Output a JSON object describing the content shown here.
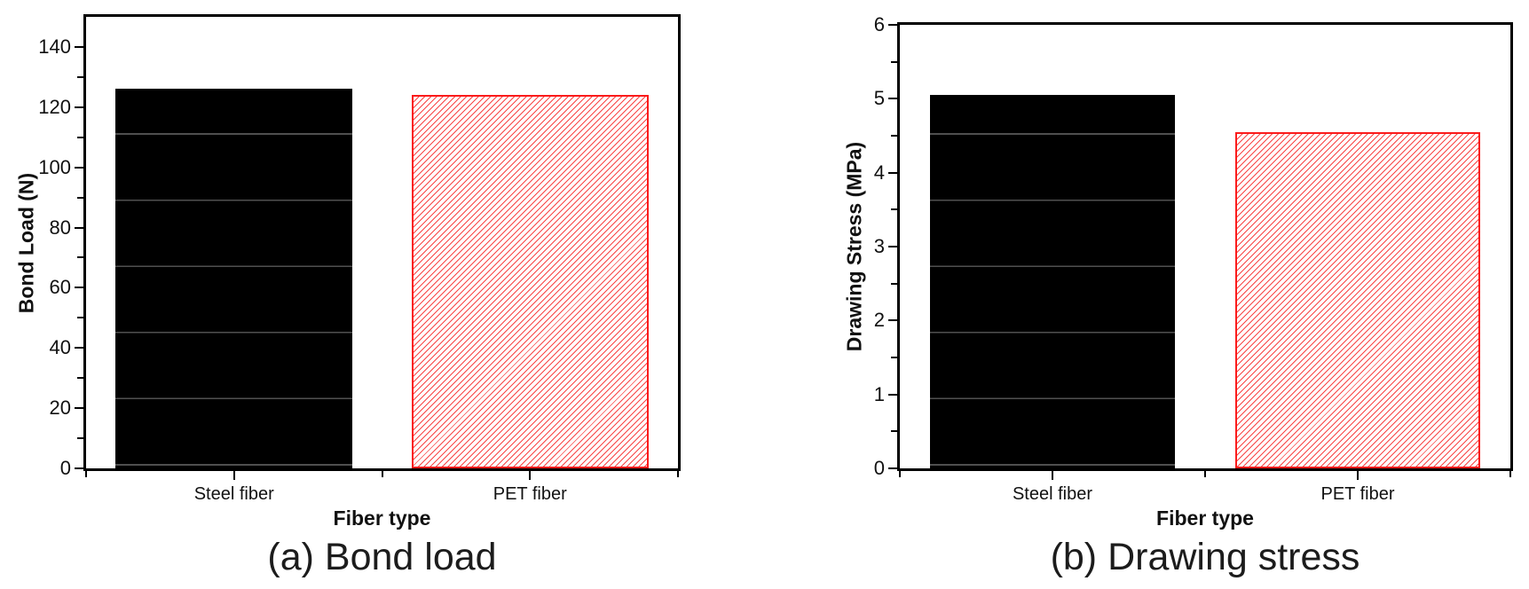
{
  "colors": {
    "axis": "#000000",
    "bar_fill": "#000000",
    "banding_line": "#4f4f4f",
    "hatch_line": "#f94545",
    "hatch_border": "#fb1b1b",
    "background": "#ffffff",
    "text": "#111111"
  },
  "chart_data": [
    {
      "type": "bar",
      "caption": "(a) Bond load",
      "xlabel": "Fiber type",
      "ylabel": "Bond Load (N)",
      "categories": [
        "Steel fiber",
        "PET fiber"
      ],
      "values": [
        126,
        124
      ],
      "ylim": [
        0,
        150
      ],
      "ytick_step": 20,
      "yminor_step": 10,
      "ytick_labels": [
        "0",
        "20",
        "40",
        "60",
        "80",
        "100",
        "120",
        "140"
      ],
      "bar_styles": [
        "solid-black",
        "hatched-red"
      ],
      "grid": false,
      "legend": "none"
    },
    {
      "type": "bar",
      "caption": "(b) Drawing stress",
      "xlabel": "Fiber type",
      "ylabel": "Drawing Stress (MPa)",
      "categories": [
        "Steel fiber",
        "PET fiber"
      ],
      "values": [
        5.05,
        4.55
      ],
      "ylim": [
        0,
        6
      ],
      "ytick_step": 1,
      "yminor_step": 0.5,
      "ytick_labels": [
        "0",
        "1",
        "2",
        "3",
        "4",
        "5",
        "6"
      ],
      "bar_styles": [
        "solid-black",
        "hatched-red"
      ],
      "grid": false,
      "legend": "none"
    }
  ]
}
